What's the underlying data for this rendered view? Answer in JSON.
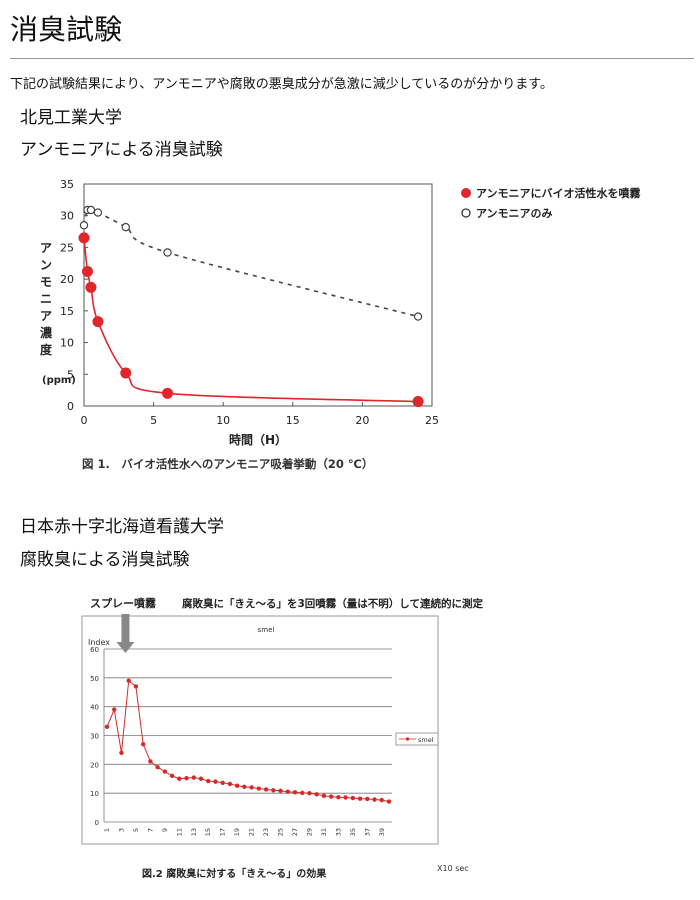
{
  "page": {
    "title": "消臭試験",
    "intro": "下記の試験結果により、アンモニアや腐敗の悪臭成分が急激に減少しているのが分かります。"
  },
  "sections": [
    {
      "institution": "北見工業大学",
      "test": "アンモニアによる消臭試験"
    },
    {
      "institution": "日本赤十字北海道看護大学",
      "test": "腐敗臭による消臭試験"
    }
  ],
  "chart_data": [
    {
      "type": "line",
      "caption": "図 1.　バイオ活性水へのアンモニア吸着挙動（20 ℃）",
      "xlabel": "時間（H）",
      "ylabel_chars": [
        "ア",
        "ン",
        "モ",
        "ニ",
        "ア",
        "濃",
        "度"
      ],
      "ylabel_unit": "(ppm)",
      "xlim": [
        0,
        25
      ],
      "ylim": [
        0,
        35
      ],
      "xticks": [
        0,
        5,
        10,
        15,
        20,
        25
      ],
      "yticks": [
        0,
        5,
        10,
        15,
        20,
        25,
        30,
        35
      ],
      "legend_position": "right",
      "series": [
        {
          "name": "アンモニアにバイオ活性水を噴霧",
          "color": "#e0252b",
          "marker": "filled-circle",
          "line": "solid",
          "x": [
            0,
            0.25,
            0.5,
            1,
            3,
            6,
            24
          ],
          "y": [
            26.5,
            21.2,
            18.7,
            13.3,
            5.2,
            2.0,
            0.7
          ]
        },
        {
          "name": "アンモニアのみ",
          "color": "#444444",
          "marker": "open-circle",
          "line": "dashed",
          "x": [
            0,
            0.25,
            0.5,
            1,
            3,
            6,
            24
          ],
          "y": [
            28.5,
            30.9,
            30.9,
            30.5,
            28.2,
            24.2,
            14.1
          ]
        }
      ]
    },
    {
      "type": "line",
      "header_label": "スプレー噴霧",
      "header_title": "腐敗臭に「きえ〜る」を3回噴霧（量は不明）して連続的に測定",
      "plot_title": "smel",
      "ylabel": "Index",
      "ylim": [
        0,
        60
      ],
      "yticks": [
        0,
        10,
        20,
        30,
        40,
        50,
        60
      ],
      "x": [
        1,
        2,
        3,
        4,
        5,
        6,
        7,
        8,
        9,
        10,
        11,
        12,
        13,
        14,
        15,
        16,
        17,
        18,
        19,
        20,
        21,
        22,
        23,
        24,
        25,
        26,
        27,
        28,
        29,
        30,
        31,
        32,
        33,
        34,
        35,
        36,
        37,
        38,
        39,
        40
      ],
      "xticks_labels": [
        "1",
        "3",
        "5",
        "7",
        "9",
        "11",
        "13",
        "15",
        "17",
        "19",
        "21",
        "23",
        "25",
        "27",
        "29",
        "31",
        "33",
        "35",
        "37",
        "39"
      ],
      "series": [
        {
          "name": "smel",
          "color": "#d62a2a",
          "values": [
            33,
            39,
            24,
            49,
            47,
            27,
            21,
            19,
            17.5,
            16,
            15,
            15.2,
            15.4,
            15,
            14.2,
            14,
            13.6,
            13.2,
            12.6,
            12.2,
            12,
            11.6,
            11.3,
            11,
            10.8,
            10.5,
            10.3,
            10.1,
            10,
            9.6,
            9.1,
            8.8,
            8.6,
            8.5,
            8.3,
            8.1,
            8,
            7.8,
            7.6,
            7.1
          ]
        }
      ],
      "arrow_at_x": 3,
      "caption": "図.2  腐敗臭に対する「きえ〜る」の効果",
      "x_unit_note": "X10 sec",
      "legend_position": "right"
    }
  ]
}
